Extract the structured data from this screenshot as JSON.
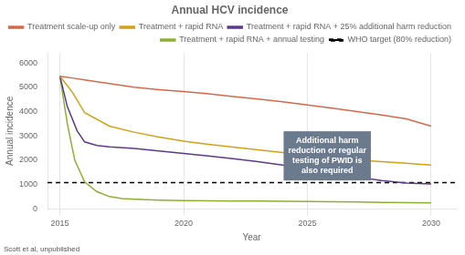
{
  "chart_data": {
    "type": "line",
    "title": "Annual HCV incidence",
    "x_label": "Year",
    "y_label": "Annual incidence",
    "source": "Scott et al, unpublished",
    "xlim": [
      2014.5,
      2031
    ],
    "xticks": [
      2015,
      2020,
      2025,
      2030
    ],
    "ylim": [
      0,
      6400
    ],
    "yticks": [
      0,
      1000,
      2000,
      3000,
      4000,
      5000,
      6000
    ],
    "grid": "x",
    "legend": "upper right",
    "annotations": [
      {
        "text": "Additional harm\nreduction or regular\ntesting of PWID is\nalso required",
        "color": "#6b7b8d"
      }
    ],
    "series": [
      {
        "name": "Treatment scale-up only",
        "color": "#d4694a",
        "x": [
          2015,
          2015.5,
          2016,
          2017,
          2018,
          2019,
          2020,
          2021,
          2022,
          2023,
          2024,
          2025,
          2026,
          2027,
          2028,
          2029,
          2030
        ],
        "values": [
          5450,
          5380,
          5300,
          5150,
          5000,
          4900,
          4820,
          4730,
          4620,
          4510,
          4400,
          4270,
          4140,
          4000,
          3860,
          3700,
          3400
        ]
      },
      {
        "name": "Treatment + rapid RNA",
        "color": "#d4a017",
        "x": [
          2015,
          2015.5,
          2016,
          2017,
          2018,
          2019,
          2020,
          2021,
          2022,
          2023,
          2024,
          2025,
          2026,
          2027,
          2028,
          2029,
          2030
        ],
        "values": [
          5450,
          4800,
          3950,
          3400,
          3150,
          2950,
          2780,
          2650,
          2540,
          2420,
          2310,
          2210,
          2110,
          2000,
          1940,
          1870,
          1800
        ]
      },
      {
        "name": "Treatment + rapid RNA + 25% additional harm reduction",
        "color": "#5b3a8e",
        "x": [
          2015,
          2015.3,
          2015.7,
          2016,
          2016.5,
          2017,
          2018,
          2019,
          2020,
          2021,
          2022,
          2023,
          2024,
          2025,
          2026,
          2027,
          2028,
          2029,
          2030
        ],
        "values": [
          5450,
          4200,
          3200,
          2750,
          2600,
          2550,
          2480,
          2380,
          2270,
          2170,
          2060,
          1940,
          1800,
          1650,
          1480,
          1310,
          1160,
          1060,
          1020
        ]
      },
      {
        "name": "Treatment + rapid RNA + annual testing",
        "color": "#8db030",
        "x": [
          2015,
          2015.3,
          2015.6,
          2016,
          2016.5,
          2017,
          2017.5,
          2018,
          2018.5,
          2019,
          2020,
          2021,
          2022,
          2023,
          2024,
          2025,
          2026,
          2027,
          2028,
          2029,
          2030
        ],
        "values": [
          5450,
          3500,
          2000,
          1100,
          700,
          500,
          420,
          390,
          370,
          355,
          340,
          330,
          320,
          315,
          305,
          295,
          285,
          275,
          265,
          255,
          240
        ]
      },
      {
        "name": "WHO target (80% reduction)",
        "color": "#000000",
        "line_style": "dashed",
        "x": [
          2014.5,
          2031
        ],
        "values": [
          1080,
          1080
        ]
      }
    ]
  }
}
